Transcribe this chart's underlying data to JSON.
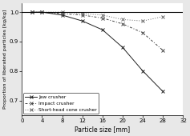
{
  "title": "",
  "xlabel": "Particle size [mm]",
  "ylabel": "Proportion of liberated particles [kg/kg]",
  "xlim": [
    0,
    32
  ],
  "ylim": [
    0.65,
    1.03
  ],
  "yticks": [
    0.7,
    0.8,
    0.9,
    1.0
  ],
  "xticks": [
    0,
    4,
    8,
    12,
    16,
    20,
    24,
    28,
    32
  ],
  "jaw_crusher": {
    "x": [
      2,
      4,
      8,
      12,
      16,
      20,
      24,
      28
    ],
    "y": [
      1.0,
      1.0,
      0.99,
      0.97,
      0.94,
      0.88,
      0.8,
      0.73
    ],
    "label": "Jaw crusher",
    "linestyle": "-",
    "marker": "x",
    "color": "#222222"
  },
  "impact_crusher": {
    "x": [
      2,
      4,
      8,
      12,
      16,
      20,
      24,
      28
    ],
    "y": [
      1.0,
      1.0,
      0.995,
      0.99,
      0.98,
      0.96,
      0.93,
      0.87
    ],
    "label": "Impact crusher",
    "linestyle": "-.",
    "marker": "x",
    "color": "#444444"
  },
  "short_head_cone_crusher": {
    "x": [
      2,
      4,
      8,
      12,
      16,
      20,
      24,
      28
    ],
    "y": [
      1.0,
      1.0,
      1.0,
      0.995,
      0.99,
      0.975,
      0.97,
      0.985
    ],
    "label": "Short-head cone crusher",
    "linestyle": ":",
    "marker": "x",
    "color": "#666666"
  },
  "background_color": "#e8e8e8",
  "plot_bg_color": "#ffffff",
  "legend_loc": "lower left"
}
